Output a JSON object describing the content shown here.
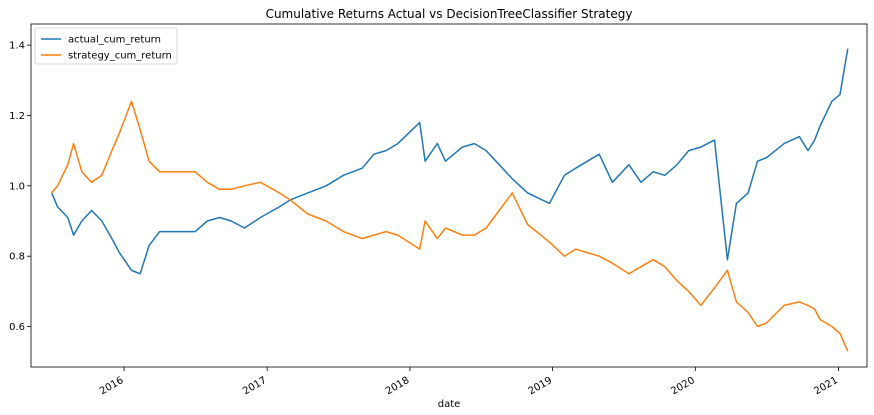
{
  "chart_data": {
    "type": "line",
    "title": "Cumulative Returns Actual vs DecisionTreeClassifier Strategy",
    "xlabel": "date",
    "ylabel": "",
    "xlim": [
      "2015-05-08",
      "2021-03-15"
    ],
    "ylim": [
      0.485,
      1.46
    ],
    "x_ticks": [
      "2016-01-01",
      "2017-01-01",
      "2018-01-01",
      "2019-01-01",
      "2020-01-01",
      "2021-01-01"
    ],
    "x_tick_labels": [
      "2016",
      "2017",
      "2018",
      "2019",
      "2020",
      "2021"
    ],
    "y_ticks": [
      0.6,
      0.8,
      1.0,
      1.2,
      1.4
    ],
    "y_tick_labels": [
      "0.6",
      "0.8",
      "1.0",
      "1.2",
      "1.4"
    ],
    "grid": false,
    "legend_position": "top-left",
    "series": [
      {
        "name": "actual_cum_return",
        "color": "#1f77b4",
        "x": [
          "2015-06-30",
          "2015-07-15",
          "2015-08-10",
          "2015-08-25",
          "2015-09-15",
          "2015-10-10",
          "2015-11-05",
          "2015-12-01",
          "2015-12-20",
          "2016-01-20",
          "2016-02-11",
          "2016-03-05",
          "2016-04-01",
          "2016-07-01",
          "2016-08-01",
          "2016-09-01",
          "2016-10-01",
          "2016-11-04",
          "2016-12-15",
          "2017-02-01",
          "2017-03-01",
          "2017-04-15",
          "2017-06-01",
          "2017-07-15",
          "2017-09-01",
          "2017-10-01",
          "2017-11-01",
          "2017-12-01",
          "2018-01-26",
          "2018-02-09",
          "2018-03-12",
          "2018-04-02",
          "2018-05-15",
          "2018-06-15",
          "2018-07-15",
          "2018-09-20",
          "2018-10-29",
          "2018-12-24",
          "2019-01-31",
          "2019-03-01",
          "2019-04-30",
          "2019-06-03",
          "2019-07-15",
          "2019-08-15",
          "2019-09-15",
          "2019-10-15",
          "2019-11-15",
          "2019-12-15",
          "2020-01-15",
          "2020-02-19",
          "2020-03-23",
          "2020-04-15",
          "2020-05-15",
          "2020-06-08",
          "2020-07-01",
          "2020-08-15",
          "2020-09-23",
          "2020-10-15",
          "2020-11-01",
          "2020-11-15",
          "2020-12-15",
          "2021-01-05",
          "2021-01-25"
        ],
        "values": [
          0.98,
          0.94,
          0.91,
          0.86,
          0.9,
          0.93,
          0.9,
          0.85,
          0.81,
          0.76,
          0.75,
          0.83,
          0.87,
          0.87,
          0.9,
          0.91,
          0.9,
          0.88,
          0.91,
          0.94,
          0.96,
          0.98,
          1.0,
          1.03,
          1.05,
          1.09,
          1.1,
          1.12,
          1.18,
          1.07,
          1.12,
          1.07,
          1.11,
          1.12,
          1.1,
          1.02,
          0.98,
          0.95,
          1.03,
          1.05,
          1.09,
          1.01,
          1.06,
          1.01,
          1.04,
          1.03,
          1.06,
          1.1,
          1.11,
          1.13,
          0.79,
          0.95,
          0.98,
          1.07,
          1.08,
          1.12,
          1.14,
          1.1,
          1.13,
          1.17,
          1.24,
          1.26,
          1.39
        ]
      },
      {
        "name": "strategy_cum_return",
        "color": "#ff7f0e",
        "x": [
          "2015-06-30",
          "2015-07-15",
          "2015-08-10",
          "2015-08-25",
          "2015-09-15",
          "2015-10-10",
          "2015-11-05",
          "2015-12-01",
          "2015-12-20",
          "2016-01-20",
          "2016-02-11",
          "2016-03-05",
          "2016-04-01",
          "2016-07-01",
          "2016-08-01",
          "2016-09-01",
          "2016-10-01",
          "2016-11-04",
          "2016-12-15",
          "2017-02-01",
          "2017-03-01",
          "2017-04-15",
          "2017-06-01",
          "2017-07-15",
          "2017-09-01",
          "2017-10-01",
          "2017-11-01",
          "2017-12-01",
          "2018-01-26",
          "2018-02-09",
          "2018-03-12",
          "2018-04-02",
          "2018-05-15",
          "2018-06-15",
          "2018-07-15",
          "2018-09-20",
          "2018-10-29",
          "2018-12-24",
          "2019-01-31",
          "2019-03-01",
          "2019-04-30",
          "2019-06-03",
          "2019-07-15",
          "2019-08-15",
          "2019-09-15",
          "2019-10-15",
          "2019-11-15",
          "2019-12-15",
          "2020-01-15",
          "2020-02-19",
          "2020-03-23",
          "2020-04-15",
          "2020-05-15",
          "2020-06-08",
          "2020-07-01",
          "2020-08-15",
          "2020-09-23",
          "2020-10-15",
          "2020-11-01",
          "2020-11-15",
          "2020-12-15",
          "2021-01-05",
          "2021-01-25"
        ],
        "values": [
          0.98,
          1.0,
          1.06,
          1.12,
          1.04,
          1.01,
          1.03,
          1.1,
          1.15,
          1.24,
          1.16,
          1.07,
          1.04,
          1.04,
          1.01,
          0.99,
          0.99,
          1.0,
          1.01,
          0.98,
          0.96,
          0.92,
          0.9,
          0.87,
          0.85,
          0.86,
          0.87,
          0.86,
          0.82,
          0.9,
          0.85,
          0.88,
          0.86,
          0.86,
          0.88,
          0.98,
          0.89,
          0.84,
          0.8,
          0.82,
          0.8,
          0.78,
          0.75,
          0.77,
          0.79,
          0.77,
          0.73,
          0.7,
          0.66,
          0.71,
          0.76,
          0.67,
          0.64,
          0.6,
          0.61,
          0.66,
          0.67,
          0.66,
          0.65,
          0.62,
          0.6,
          0.58,
          0.53
        ]
      }
    ]
  }
}
